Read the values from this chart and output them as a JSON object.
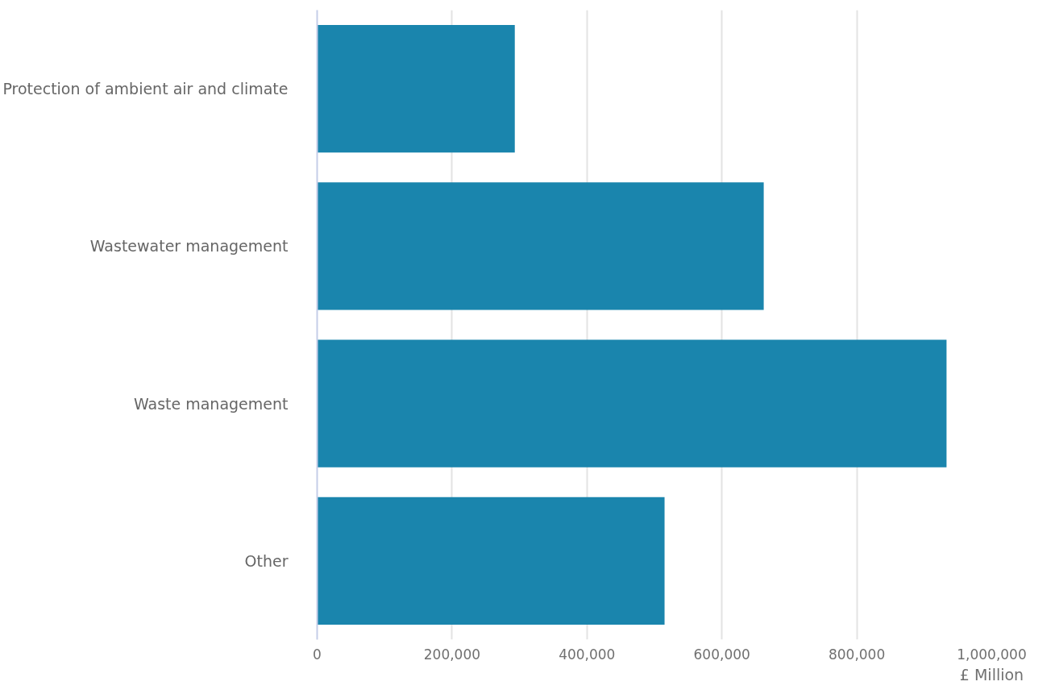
{
  "chart_data": {
    "type": "bar",
    "orientation": "horizontal",
    "xlabel": "£ Million",
    "categories": [
      "Protection of ambient air and climate",
      "Wastewater management",
      "Waste management",
      "Other"
    ],
    "values": [
      293000,
      662000,
      933000,
      515000
    ],
    "color": "#1a85ad",
    "xlim": [
      0,
      1000000
    ],
    "xticks": [
      0,
      {
        "value": 200000,
        "label": "200,000"
      },
      {
        "value": 400000,
        "label": "400,000"
      },
      {
        "value": 600000,
        "label": "600,000"
      },
      {
        "value": 800000,
        "label": "800,000"
      },
      {
        "value": 1000000,
        "label": "1,000,000"
      }
    ],
    "grid": "x"
  }
}
